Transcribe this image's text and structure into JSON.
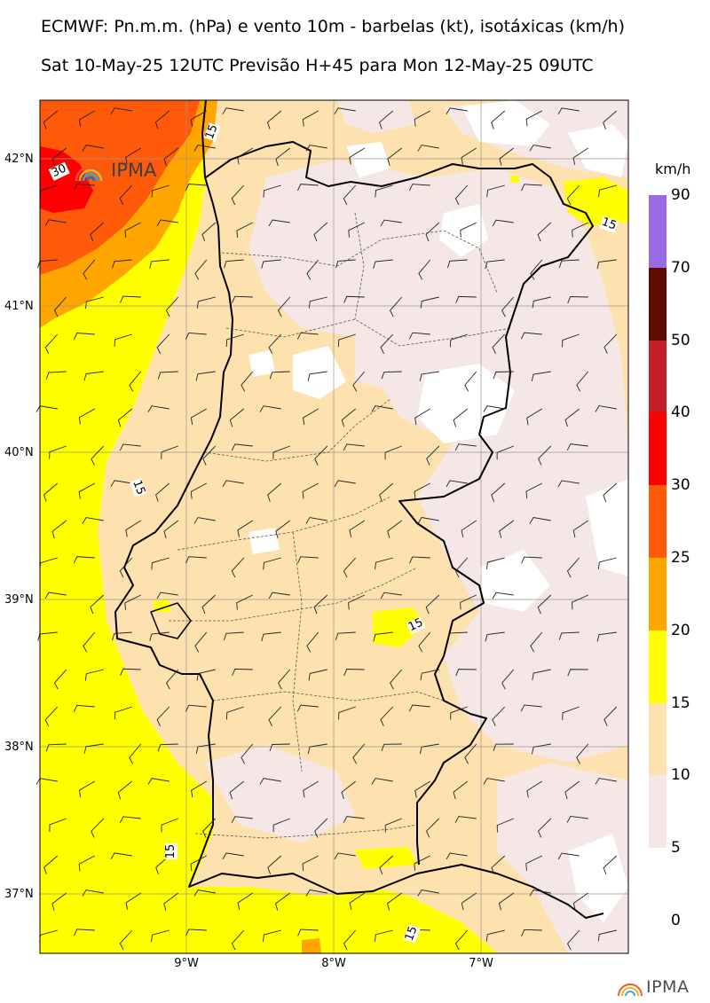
{
  "header": {
    "title_line1": "ECMWF: Pn.m.m. (hPa) e vento 10m - barbelas (kt), isotáxicas (km/h)",
    "title_line2": "Sat 10-May-25 12UTC Previsão H+45 para Mon 12-May-25 09UTC"
  },
  "map": {
    "lat_labels": [
      "42°N",
      "41°N",
      "40°N",
      "39°N",
      "38°N",
      "37°N"
    ],
    "lon_labels": [
      "9°W",
      "8°W",
      "7°W"
    ],
    "contour_labels": [
      "30",
      "15",
      "15",
      "15",
      "15",
      "15",
      "15"
    ],
    "logo_text": "IPMA"
  },
  "colorbar": {
    "unit": "km/h",
    "ticks": [
      "90",
      "70",
      "50",
      "40",
      "30",
      "25",
      "20",
      "15",
      "10",
      "5",
      "0"
    ],
    "colors": [
      "#9a6ae6",
      "#5c0d00",
      "#c41e2a",
      "#ff0000",
      "#ff5a0a",
      "#ffa500",
      "#ffff00",
      "#fde1ae",
      "#f4e7e5",
      "#ffffff"
    ]
  },
  "footer": {
    "logo_text": "IPMA"
  }
}
